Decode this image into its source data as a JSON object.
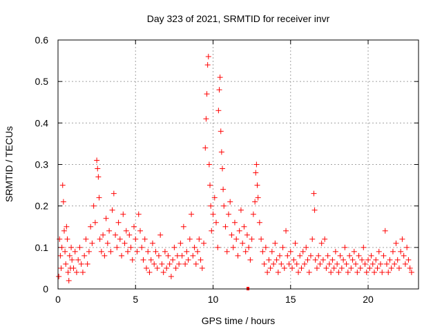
{
  "chart_data": {
    "type": "scatter",
    "title": "Day 323 of 2021, SRMTID for receiver invr",
    "xlabel": "GPS time / hours",
    "ylabel": "SRMTID / TECUs",
    "xlim": [
      0,
      23.25
    ],
    "ylim": [
      0,
      0.6
    ],
    "xticks": [
      0,
      5,
      10,
      15,
      20
    ],
    "yticks": [
      0,
      0.1,
      0.2,
      0.3,
      0.4,
      0.5,
      0.6
    ],
    "xtick_labels": [
      "0",
      "5",
      "10",
      "15",
      "20"
    ],
    "ytick_labels": [
      "0",
      "0.1",
      "0.2",
      "0.3",
      "0.4",
      "0.5",
      "0.6"
    ],
    "grid": true,
    "marker": "+",
    "color": "#ff0000",
    "series": [
      {
        "name": "SRMTID",
        "points": [
          [
            0.05,
            0.03
          ],
          [
            0.1,
            0.12
          ],
          [
            0.15,
            0.08
          ],
          [
            0.2,
            0.05
          ],
          [
            0.25,
            0.1
          ],
          [
            0.3,
            0.25
          ],
          [
            0.35,
            0.21
          ],
          [
            0.4,
            0.14
          ],
          [
            0.45,
            0.09
          ],
          [
            0.5,
            0.06
          ],
          [
            0.55,
            0.15
          ],
          [
            0.6,
            0.12
          ],
          [
            0.65,
            0.04
          ],
          [
            0.7,
            0.02
          ],
          [
            0.75,
            0.08
          ],
          [
            0.8,
            0.05
          ],
          [
            0.85,
            0.1
          ],
          [
            0.9,
            0.07
          ],
          [
            1.0,
            0.05
          ],
          [
            1.1,
            0.09
          ],
          [
            1.2,
            0.04
          ],
          [
            1.3,
            0.07
          ],
          [
            1.4,
            0.1
          ],
          [
            1.5,
            0.06
          ],
          [
            1.6,
            0.04
          ],
          [
            1.7,
            0.08
          ],
          [
            1.8,
            0.12
          ],
          [
            1.9,
            0.06
          ],
          [
            2.0,
            0.09
          ],
          [
            2.1,
            0.15
          ],
          [
            2.2,
            0.11
          ],
          [
            2.3,
            0.2
          ],
          [
            2.4,
            0.16
          ],
          [
            2.5,
            0.31
          ],
          [
            2.55,
            0.29
          ],
          [
            2.6,
            0.27
          ],
          [
            2.65,
            0.22
          ],
          [
            2.7,
            0.12
          ],
          [
            2.8,
            0.09
          ],
          [
            2.9,
            0.13
          ],
          [
            3.0,
            0.08
          ],
          [
            3.1,
            0.17
          ],
          [
            3.2,
            0.11
          ],
          [
            3.3,
            0.14
          ],
          [
            3.4,
            0.09
          ],
          [
            3.5,
            0.19
          ],
          [
            3.6,
            0.23
          ],
          [
            3.7,
            0.13
          ],
          [
            3.8,
            0.1
          ],
          [
            3.9,
            0.16
          ],
          [
            4.0,
            0.12
          ],
          [
            4.1,
            0.08
          ],
          [
            4.2,
            0.18
          ],
          [
            4.3,
            0.11
          ],
          [
            4.4,
            0.14
          ],
          [
            4.5,
            0.09
          ],
          [
            4.6,
            0.13
          ],
          [
            4.7,
            0.1
          ],
          [
            4.8,
            0.07
          ],
          [
            4.9,
            0.15
          ],
          [
            5.0,
            0.12
          ],
          [
            5.1,
            0.09
          ],
          [
            5.2,
            0.18
          ],
          [
            5.3,
            0.14
          ],
          [
            5.4,
            0.1
          ],
          [
            5.5,
            0.07
          ],
          [
            5.6,
            0.12
          ],
          [
            5.7,
            0.05
          ],
          [
            5.8,
            0.09
          ],
          [
            5.9,
            0.04
          ],
          [
            6.0,
            0.07
          ],
          [
            6.1,
            0.11
          ],
          [
            6.2,
            0.06
          ],
          [
            6.3,
            0.09
          ],
          [
            6.4,
            0.05
          ],
          [
            6.5,
            0.08
          ],
          [
            6.6,
            0.13
          ],
          [
            6.7,
            0.06
          ],
          [
            6.8,
            0.04
          ],
          [
            6.9,
            0.09
          ],
          [
            7.0,
            0.05
          ],
          [
            7.1,
            0.08
          ],
          [
            7.2,
            0.06
          ],
          [
            7.3,
            0.03
          ],
          [
            7.4,
            0.07
          ],
          [
            7.5,
            0.1
          ],
          [
            7.6,
            0.05
          ],
          [
            7.7,
            0.08
          ],
          [
            7.8,
            0.06
          ],
          [
            7.9,
            0.11
          ],
          [
            8.0,
            0.08
          ],
          [
            8.1,
            0.15
          ],
          [
            8.2,
            0.06
          ],
          [
            8.3,
            0.09
          ],
          [
            8.4,
            0.07
          ],
          [
            8.5,
            0.12
          ],
          [
            8.6,
            0.18
          ],
          [
            8.7,
            0.08
          ],
          [
            8.8,
            0.1
          ],
          [
            8.9,
            0.06
          ],
          [
            9.0,
            0.09
          ],
          [
            9.1,
            0.12
          ],
          [
            9.2,
            0.07
          ],
          [
            9.3,
            0.05
          ],
          [
            9.4,
            0.11
          ],
          [
            9.5,
            0.34
          ],
          [
            9.55,
            0.41
          ],
          [
            9.6,
            0.47
          ],
          [
            9.65,
            0.54
          ],
          [
            9.7,
            0.56
          ],
          [
            9.75,
            0.3
          ],
          [
            9.8,
            0.25
          ],
          [
            9.85,
            0.2
          ],
          [
            9.9,
            0.14
          ],
          [
            10.0,
            0.18
          ],
          [
            10.1,
            0.22
          ],
          [
            10.2,
            0.16
          ],
          [
            10.3,
            0.1
          ],
          [
            10.35,
            0.43
          ],
          [
            10.4,
            0.48
          ],
          [
            10.45,
            0.51
          ],
          [
            10.5,
            0.38
          ],
          [
            10.55,
            0.33
          ],
          [
            10.6,
            0.29
          ],
          [
            10.65,
            0.24
          ],
          [
            10.7,
            0.2
          ],
          [
            10.8,
            0.15
          ],
          [
            10.9,
            0.09
          ],
          [
            11.0,
            0.18
          ],
          [
            11.1,
            0.21
          ],
          [
            11.2,
            0.13
          ],
          [
            11.3,
            0.1
          ],
          [
            11.4,
            0.16
          ],
          [
            11.5,
            0.12
          ],
          [
            11.6,
            0.08
          ],
          [
            11.7,
            0.14
          ],
          [
            11.8,
            0.19
          ],
          [
            11.9,
            0.11
          ],
          [
            12.0,
            0.15
          ],
          [
            12.1,
            0.09
          ],
          [
            12.2,
            0.13
          ],
          [
            12.3,
            0.1
          ],
          [
            12.4,
            0.07
          ],
          [
            12.5,
            0.12
          ],
          [
            12.6,
            0.18
          ],
          [
            12.7,
            0.21
          ],
          [
            12.75,
            0.28
          ],
          [
            12.8,
            0.3
          ],
          [
            12.85,
            0.25
          ],
          [
            12.9,
            0.22
          ],
          [
            13.0,
            0.16
          ],
          [
            13.1,
            0.12
          ],
          [
            13.2,
            0.09
          ],
          [
            13.3,
            0.06
          ],
          [
            13.4,
            0.1
          ],
          [
            13.5,
            0.04
          ],
          [
            13.6,
            0.07
          ],
          [
            13.7,
            0.05
          ],
          [
            13.8,
            0.09
          ],
          [
            13.9,
            0.06
          ],
          [
            14.0,
            0.11
          ],
          [
            14.1,
            0.07
          ],
          [
            14.2,
            0.04
          ],
          [
            14.3,
            0.08
          ],
          [
            14.4,
            0.06
          ],
          [
            14.5,
            0.1
          ],
          [
            14.6,
            0.05
          ],
          [
            14.7,
            0.14
          ],
          [
            14.8,
            0.08
          ],
          [
            14.9,
            0.06
          ],
          [
            15.0,
            0.09
          ],
          [
            15.1,
            0.05
          ],
          [
            15.2,
            0.07
          ],
          [
            15.3,
            0.11
          ],
          [
            15.4,
            0.06
          ],
          [
            15.5,
            0.04
          ],
          [
            15.6,
            0.08
          ],
          [
            15.7,
            0.05
          ],
          [
            15.8,
            0.09
          ],
          [
            15.9,
            0.06
          ],
          [
            16.0,
            0.1
          ],
          [
            16.1,
            0.07
          ],
          [
            16.2,
            0.04
          ],
          [
            16.3,
            0.08
          ],
          [
            16.4,
            0.12
          ],
          [
            16.5,
            0.23
          ],
          [
            16.55,
            0.19
          ],
          [
            16.6,
            0.07
          ],
          [
            16.7,
            0.05
          ],
          [
            16.8,
            0.08
          ],
          [
            16.9,
            0.06
          ],
          [
            17.0,
            0.11
          ],
          [
            17.1,
            0.07
          ],
          [
            17.2,
            0.12
          ],
          [
            17.3,
            0.05
          ],
          [
            17.4,
            0.08
          ],
          [
            17.5,
            0.06
          ],
          [
            17.6,
            0.04
          ],
          [
            17.7,
            0.07
          ],
          [
            17.8,
            0.05
          ],
          [
            17.9,
            0.09
          ],
          [
            18.0,
            0.06
          ],
          [
            18.1,
            0.04
          ],
          [
            18.2,
            0.08
          ],
          [
            18.3,
            0.05
          ],
          [
            18.4,
            0.07
          ],
          [
            18.5,
            0.1
          ],
          [
            18.6,
            0.06
          ],
          [
            18.7,
            0.04
          ],
          [
            18.8,
            0.08
          ],
          [
            18.9,
            0.05
          ],
          [
            19.0,
            0.07
          ],
          [
            19.1,
            0.09
          ],
          [
            19.2,
            0.06
          ],
          [
            19.3,
            0.04
          ],
          [
            19.4,
            0.08
          ],
          [
            19.5,
            0.05
          ],
          [
            19.6,
            0.07
          ],
          [
            19.7,
            0.1
          ],
          [
            19.8,
            0.06
          ],
          [
            19.9,
            0.04
          ],
          [
            20.0,
            0.07
          ],
          [
            20.1,
            0.05
          ],
          [
            20.2,
            0.08
          ],
          [
            20.3,
            0.06
          ],
          [
            20.4,
            0.04
          ],
          [
            20.5,
            0.07
          ],
          [
            20.6,
            0.05
          ],
          [
            20.7,
            0.09
          ],
          [
            20.8,
            0.06
          ],
          [
            20.9,
            0.04
          ],
          [
            21.0,
            0.08
          ],
          [
            21.1,
            0.14
          ],
          [
            21.2,
            0.06
          ],
          [
            21.3,
            0.04
          ],
          [
            21.4,
            0.07
          ],
          [
            21.5,
            0.05
          ],
          [
            21.6,
            0.09
          ],
          [
            21.7,
            0.06
          ],
          [
            21.8,
            0.11
          ],
          [
            21.9,
            0.07
          ],
          [
            22.0,
            0.05
          ],
          [
            22.1,
            0.09
          ],
          [
            22.2,
            0.12
          ],
          [
            22.3,
            0.08
          ],
          [
            22.4,
            0.06
          ],
          [
            22.5,
            0.1
          ],
          [
            22.6,
            0.07
          ],
          [
            22.7,
            0.05
          ],
          [
            22.8,
            0.04
          ]
        ]
      }
    ],
    "highlight_marker": {
      "x": 12.25,
      "y": 0.0
    }
  }
}
